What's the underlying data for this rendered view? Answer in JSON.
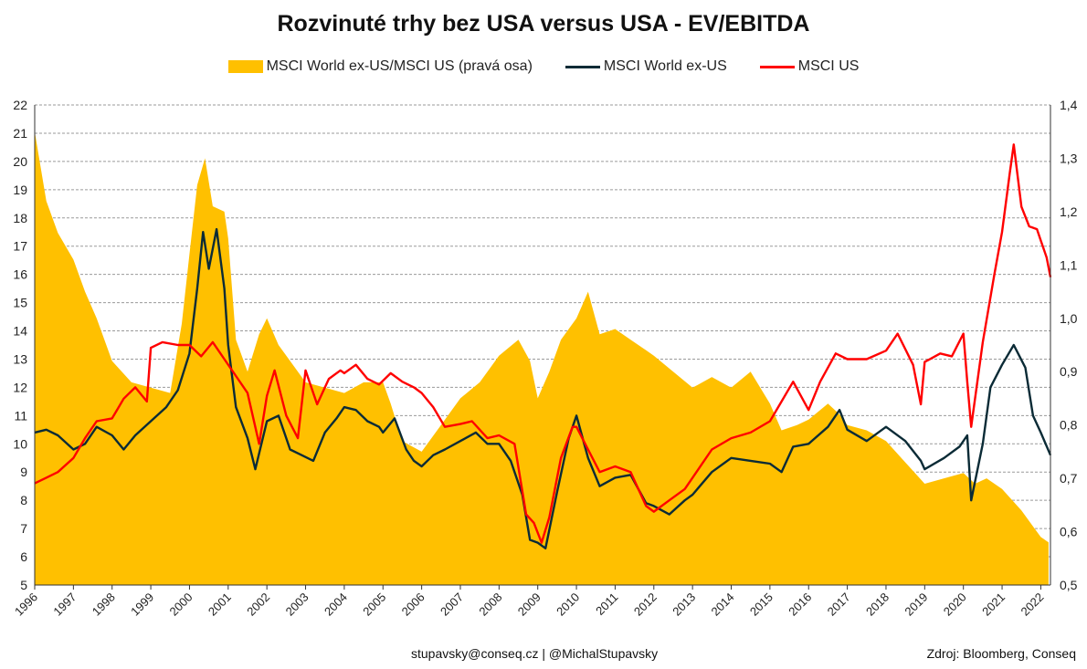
{
  "chart_data": {
    "type": "line",
    "title": "Rozvinuté trhy bez USA versus USA - EV/EBITDA",
    "x_ticks": [
      "1996",
      "1997",
      "1998",
      "1999",
      "2000",
      "2001",
      "2002",
      "2003",
      "2004",
      "2005",
      "2006",
      "2007",
      "2008",
      "2009",
      "2010",
      "2011",
      "2012",
      "2013",
      "2014",
      "2015",
      "2016",
      "2017",
      "2018",
      "2019",
      "2020",
      "2021",
      "2022"
    ],
    "x_range": [
      1996.0,
      2022.25
    ],
    "y_left": {
      "range": [
        5,
        22
      ],
      "ticks": [
        "5",
        "6",
        "7",
        "8",
        "9",
        "10",
        "11",
        "12",
        "13",
        "14",
        "15",
        "16",
        "17",
        "18",
        "19",
        "20",
        "21",
        "22"
      ]
    },
    "y_right": {
      "range": [
        0.5,
        1.4
      ],
      "ticks": [
        "0,5",
        "0,6",
        "0,7",
        "0,8",
        "0,9",
        "1,0",
        "1,1",
        "1,2",
        "1,3",
        "1,4"
      ]
    },
    "grid": true,
    "legend_position": "top-center",
    "series": [
      {
        "name": "MSCI World ex-US/MSCI US (pravá osa)",
        "kind": "area",
        "axis": "right",
        "color": "#FFC000",
        "points": [
          [
            1996.0,
            1.35
          ],
          [
            1996.3,
            1.22
          ],
          [
            1996.6,
            1.16
          ],
          [
            1997.0,
            1.11
          ],
          [
            1997.3,
            1.05
          ],
          [
            1997.6,
            1.0
          ],
          [
            1998.0,
            0.92
          ],
          [
            1998.5,
            0.88
          ],
          [
            1999.0,
            0.87
          ],
          [
            1999.5,
            0.86
          ],
          [
            1999.8,
            0.99
          ],
          [
            2000.0,
            1.12
          ],
          [
            2000.2,
            1.25
          ],
          [
            2000.4,
            1.3
          ],
          [
            2000.6,
            1.21
          ],
          [
            2000.9,
            1.2
          ],
          [
            2001.0,
            1.15
          ],
          [
            2001.2,
            0.96
          ],
          [
            2001.5,
            0.9
          ],
          [
            2001.8,
            0.97
          ],
          [
            2002.0,
            1.0
          ],
          [
            2002.3,
            0.95
          ],
          [
            2002.6,
            0.92
          ],
          [
            2003.0,
            0.88
          ],
          [
            2003.5,
            0.87
          ],
          [
            2004.0,
            0.86
          ],
          [
            2004.5,
            0.88
          ],
          [
            2005.0,
            0.88
          ],
          [
            2005.2,
            0.84
          ],
          [
            2005.5,
            0.77
          ],
          [
            2006.0,
            0.75
          ],
          [
            2006.5,
            0.8
          ],
          [
            2007.0,
            0.85
          ],
          [
            2007.5,
            0.88
          ],
          [
            2008.0,
            0.93
          ],
          [
            2008.5,
            0.96
          ],
          [
            2008.8,
            0.92
          ],
          [
            2009.0,
            0.85
          ],
          [
            2009.3,
            0.9
          ],
          [
            2009.6,
            0.96
          ],
          [
            2010.0,
            1.0
          ],
          [
            2010.3,
            1.05
          ],
          [
            2010.6,
            0.97
          ],
          [
            2011.0,
            0.98
          ],
          [
            2011.4,
            0.96
          ],
          [
            2011.8,
            0.94
          ],
          [
            2012.0,
            0.93
          ],
          [
            2012.5,
            0.9
          ],
          [
            2013.0,
            0.87
          ],
          [
            2013.5,
            0.89
          ],
          [
            2014.0,
            0.87
          ],
          [
            2014.5,
            0.9
          ],
          [
            2015.0,
            0.84
          ],
          [
            2015.3,
            0.79
          ],
          [
            2015.7,
            0.8
          ],
          [
            2016.0,
            0.81
          ],
          [
            2016.5,
            0.84
          ],
          [
            2016.8,
            0.82
          ],
          [
            2017.0,
            0.8
          ],
          [
            2017.5,
            0.79
          ],
          [
            2018.0,
            0.77
          ],
          [
            2018.5,
            0.73
          ],
          [
            2019.0,
            0.69
          ],
          [
            2019.5,
            0.7
          ],
          [
            2020.0,
            0.71
          ],
          [
            2020.3,
            0.69
          ],
          [
            2020.6,
            0.7
          ],
          [
            2021.0,
            0.68
          ],
          [
            2021.5,
            0.64
          ],
          [
            2021.8,
            0.61
          ],
          [
            2022.0,
            0.59
          ],
          [
            2022.2,
            0.58
          ]
        ]
      },
      {
        "name": "MSCI World ex-US",
        "kind": "line",
        "axis": "left",
        "color": "#0B2B36",
        "points": [
          [
            1996.0,
            10.4
          ],
          [
            1996.3,
            10.5
          ],
          [
            1996.6,
            10.3
          ],
          [
            1997.0,
            9.8
          ],
          [
            1997.3,
            10.0
          ],
          [
            1997.6,
            10.6
          ],
          [
            1998.0,
            10.3
          ],
          [
            1998.3,
            9.8
          ],
          [
            1998.6,
            10.3
          ],
          [
            1999.0,
            10.8
          ],
          [
            1999.4,
            11.3
          ],
          [
            1999.7,
            11.9
          ],
          [
            2000.0,
            13.2
          ],
          [
            2000.2,
            15.5
          ],
          [
            2000.35,
            17.5
          ],
          [
            2000.5,
            16.2
          ],
          [
            2000.7,
            17.6
          ],
          [
            2000.9,
            15.5
          ],
          [
            2001.0,
            13.5
          ],
          [
            2001.2,
            11.3
          ],
          [
            2001.5,
            10.2
          ],
          [
            2001.7,
            9.1
          ],
          [
            2002.0,
            10.8
          ],
          [
            2002.3,
            11.0
          ],
          [
            2002.6,
            9.8
          ],
          [
            2002.9,
            9.6
          ],
          [
            2003.2,
            9.4
          ],
          [
            2003.5,
            10.4
          ],
          [
            2003.8,
            10.9
          ],
          [
            2004.0,
            11.3
          ],
          [
            2004.3,
            11.2
          ],
          [
            2004.6,
            10.8
          ],
          [
            2004.9,
            10.6
          ],
          [
            2005.0,
            10.4
          ],
          [
            2005.3,
            10.9
          ],
          [
            2005.6,
            9.8
          ],
          [
            2005.8,
            9.4
          ],
          [
            2006.0,
            9.2
          ],
          [
            2006.3,
            9.6
          ],
          [
            2006.6,
            9.8
          ],
          [
            2007.0,
            10.1
          ],
          [
            2007.4,
            10.4
          ],
          [
            2007.7,
            10.0
          ],
          [
            2008.0,
            10.0
          ],
          [
            2008.3,
            9.4
          ],
          [
            2008.6,
            8.2
          ],
          [
            2008.8,
            6.6
          ],
          [
            2009.0,
            6.5
          ],
          [
            2009.2,
            6.3
          ],
          [
            2009.5,
            8.3
          ],
          [
            2009.8,
            10.2
          ],
          [
            2010.0,
            11.0
          ],
          [
            2010.3,
            9.5
          ],
          [
            2010.6,
            8.5
          ],
          [
            2011.0,
            8.8
          ],
          [
            2011.4,
            8.9
          ],
          [
            2011.8,
            7.9
          ],
          [
            2012.0,
            7.8
          ],
          [
            2012.4,
            7.5
          ],
          [
            2012.8,
            8.0
          ],
          [
            2013.0,
            8.2
          ],
          [
            2013.5,
            9.0
          ],
          [
            2014.0,
            9.5
          ],
          [
            2014.5,
            9.4
          ],
          [
            2015.0,
            9.3
          ],
          [
            2015.3,
            9.0
          ],
          [
            2015.6,
            9.9
          ],
          [
            2016.0,
            10.0
          ],
          [
            2016.5,
            10.6
          ],
          [
            2016.8,
            11.2
          ],
          [
            2017.0,
            10.5
          ],
          [
            2017.5,
            10.1
          ],
          [
            2018.0,
            10.6
          ],
          [
            2018.5,
            10.1
          ],
          [
            2018.9,
            9.4
          ],
          [
            2019.0,
            9.1
          ],
          [
            2019.5,
            9.5
          ],
          [
            2019.9,
            9.9
          ],
          [
            2020.1,
            10.3
          ],
          [
            2020.2,
            8.0
          ],
          [
            2020.5,
            10.0
          ],
          [
            2020.7,
            12.0
          ],
          [
            2021.0,
            12.8
          ],
          [
            2021.3,
            13.5
          ],
          [
            2021.6,
            12.7
          ],
          [
            2021.8,
            11.0
          ],
          [
            2022.0,
            10.4
          ],
          [
            2022.25,
            9.6
          ]
        ]
      },
      {
        "name": "MSCI US",
        "kind": "line",
        "axis": "left",
        "color": "#FF0000",
        "points": [
          [
            1996.0,
            8.6
          ],
          [
            1996.3,
            8.8
          ],
          [
            1996.6,
            9.0
          ],
          [
            1997.0,
            9.5
          ],
          [
            1997.3,
            10.2
          ],
          [
            1997.6,
            10.8
          ],
          [
            1998.0,
            10.9
          ],
          [
            1998.3,
            11.6
          ],
          [
            1998.6,
            12.0
          ],
          [
            1998.9,
            11.5
          ],
          [
            1999.0,
            13.4
          ],
          [
            1999.3,
            13.6
          ],
          [
            1999.7,
            13.5
          ],
          [
            2000.0,
            13.5
          ],
          [
            2000.3,
            13.1
          ],
          [
            2000.6,
            13.6
          ],
          [
            2000.9,
            13.0
          ],
          [
            2001.2,
            12.4
          ],
          [
            2001.5,
            11.8
          ],
          [
            2001.8,
            10.0
          ],
          [
            2002.0,
            11.7
          ],
          [
            2002.2,
            12.6
          ],
          [
            2002.5,
            11.0
          ],
          [
            2002.8,
            10.2
          ],
          [
            2003.0,
            12.6
          ],
          [
            2003.3,
            11.4
          ],
          [
            2003.6,
            12.3
          ],
          [
            2003.9,
            12.6
          ],
          [
            2004.0,
            12.5
          ],
          [
            2004.3,
            12.8
          ],
          [
            2004.6,
            12.3
          ],
          [
            2004.9,
            12.1
          ],
          [
            2005.2,
            12.5
          ],
          [
            2005.5,
            12.2
          ],
          [
            2005.8,
            12.0
          ],
          [
            2006.0,
            11.8
          ],
          [
            2006.3,
            11.3
          ],
          [
            2006.6,
            10.6
          ],
          [
            2007.0,
            10.7
          ],
          [
            2007.3,
            10.8
          ],
          [
            2007.7,
            10.2
          ],
          [
            2008.0,
            10.3
          ],
          [
            2008.4,
            10.0
          ],
          [
            2008.7,
            7.5
          ],
          [
            2008.9,
            7.2
          ],
          [
            2009.1,
            6.5
          ],
          [
            2009.3,
            7.4
          ],
          [
            2009.6,
            9.5
          ],
          [
            2009.9,
            10.6
          ],
          [
            2010.0,
            10.6
          ],
          [
            2010.3,
            9.8
          ],
          [
            2010.6,
            9.0
          ],
          [
            2011.0,
            9.2
          ],
          [
            2011.4,
            9.0
          ],
          [
            2011.8,
            7.8
          ],
          [
            2012.0,
            7.6
          ],
          [
            2012.4,
            8.0
          ],
          [
            2012.8,
            8.4
          ],
          [
            2013.0,
            8.8
          ],
          [
            2013.5,
            9.8
          ],
          [
            2014.0,
            10.2
          ],
          [
            2014.5,
            10.4
          ],
          [
            2015.0,
            10.8
          ],
          [
            2015.3,
            11.5
          ],
          [
            2015.6,
            12.2
          ],
          [
            2016.0,
            11.2
          ],
          [
            2016.3,
            12.2
          ],
          [
            2016.7,
            13.2
          ],
          [
            2017.0,
            13.0
          ],
          [
            2017.5,
            13.0
          ],
          [
            2018.0,
            13.3
          ],
          [
            2018.3,
            13.9
          ],
          [
            2018.7,
            12.8
          ],
          [
            2018.9,
            11.4
          ],
          [
            2019.0,
            12.9
          ],
          [
            2019.4,
            13.2
          ],
          [
            2019.7,
            13.1
          ],
          [
            2020.0,
            13.9
          ],
          [
            2020.1,
            12.2
          ],
          [
            2020.2,
            10.6
          ],
          [
            2020.5,
            13.6
          ],
          [
            2020.8,
            16.0
          ],
          [
            2021.0,
            17.5
          ],
          [
            2021.2,
            19.6
          ],
          [
            2021.3,
            20.6
          ],
          [
            2021.5,
            18.4
          ],
          [
            2021.7,
            17.7
          ],
          [
            2021.9,
            17.6
          ],
          [
            2022.0,
            17.2
          ],
          [
            2022.15,
            16.6
          ],
          [
            2022.25,
            15.9
          ]
        ]
      }
    ]
  },
  "footer": {
    "contact": "stupavsky@conseq.cz  |  @MichalStupavsky",
    "source": "Zdroj: Bloomberg, Conseq"
  }
}
